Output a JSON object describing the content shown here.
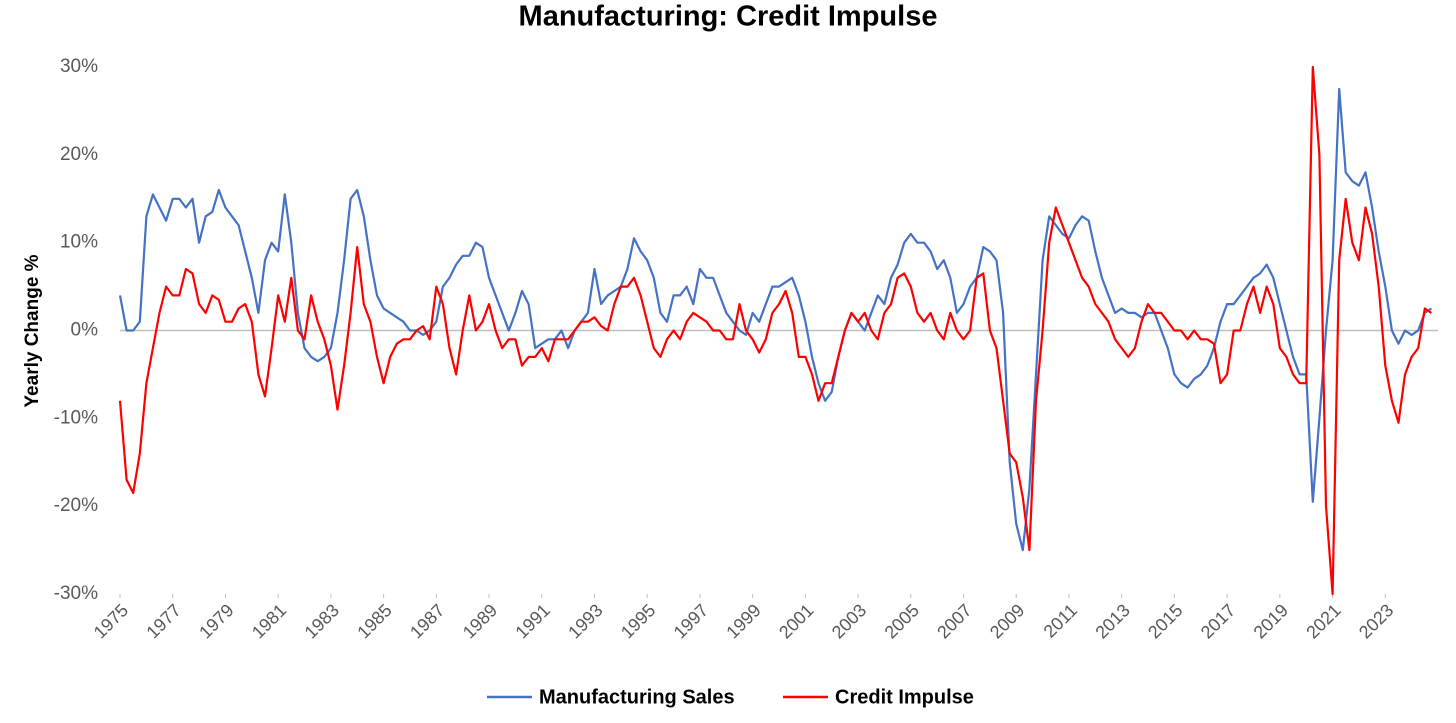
{
  "chart_data": {
    "type": "line",
    "title": "Manufacturing: Credit Impulse",
    "y_label": "Yearly Change %",
    "x": [
      1975,
      1975.25,
      1975.5,
      1975.75,
      1976,
      1976.25,
      1976.5,
      1976.75,
      1977,
      1977.25,
      1977.5,
      1977.75,
      1978,
      1978.25,
      1978.5,
      1978.75,
      1979,
      1979.25,
      1979.5,
      1979.75,
      1980,
      1980.25,
      1980.5,
      1980.75,
      1981,
      1981.25,
      1981.5,
      1981.75,
      1982,
      1982.25,
      1982.5,
      1982.75,
      1983,
      1983.25,
      1983.5,
      1983.75,
      1984,
      1984.25,
      1984.5,
      1984.75,
      1985,
      1985.25,
      1985.5,
      1985.75,
      1986,
      1986.25,
      1986.5,
      1986.75,
      1987,
      1987.25,
      1987.5,
      1987.75,
      1988,
      1988.25,
      1988.5,
      1988.75,
      1989,
      1989.25,
      1989.5,
      1989.75,
      1990,
      1990.25,
      1990.5,
      1990.75,
      1991,
      1991.25,
      1991.5,
      1991.75,
      1992,
      1992.25,
      1992.5,
      1992.75,
      1993,
      1993.25,
      1993.5,
      1993.75,
      1994,
      1994.25,
      1994.5,
      1994.75,
      1995,
      1995.25,
      1995.5,
      1995.75,
      1996,
      1996.25,
      1996.5,
      1996.75,
      1997,
      1997.25,
      1997.5,
      1997.75,
      1998,
      1998.25,
      1998.5,
      1998.75,
      1999,
      1999.25,
      1999.5,
      1999.75,
      2000,
      2000.25,
      2000.5,
      2000.75,
      2001,
      2001.25,
      2001.5,
      2001.75,
      2002,
      2002.25,
      2002.5,
      2002.75,
      2003,
      2003.25,
      2003.5,
      2003.75,
      2004,
      2004.25,
      2004.5,
      2004.75,
      2005,
      2005.25,
      2005.5,
      2005.75,
      2006,
      2006.25,
      2006.5,
      2006.75,
      2007,
      2007.25,
      2007.5,
      2007.75,
      2008,
      2008.25,
      2008.5,
      2008.75,
      2009,
      2009.25,
      2009.5,
      2009.75,
      2010,
      2010.25,
      2010.5,
      2010.75,
      2011,
      2011.25,
      2011.5,
      2011.75,
      2012,
      2012.25,
      2012.5,
      2012.75,
      2013,
      2013.25,
      2013.5,
      2013.75,
      2014,
      2014.25,
      2014.5,
      2014.75,
      2015,
      2015.25,
      2015.5,
      2015.75,
      2016,
      2016.25,
      2016.5,
      2016.75,
      2017,
      2017.25,
      2017.5,
      2017.75,
      2018,
      2018.25,
      2018.5,
      2018.75,
      2019,
      2019.25,
      2019.5,
      2019.75,
      2020,
      2020.25,
      2020.5,
      2020.75,
      2021,
      2021.25,
      2021.5,
      2021.75,
      2022,
      2022.25,
      2022.5,
      2022.75,
      2023,
      2023.25,
      2023.5,
      2023.75,
      2024,
      2024.25,
      2024.5,
      2024.75
    ],
    "series": [
      {
        "name": "Manufacturing Sales",
        "color": "#4472c4",
        "values": [
          4,
          0,
          0,
          1,
          13,
          15.5,
          14,
          12.5,
          15,
          15,
          14,
          15,
          10,
          13,
          13.5,
          16,
          14,
          13,
          12,
          9,
          6,
          2,
          8,
          10,
          9,
          15.5,
          10,
          2,
          -2,
          -3,
          -3.5,
          -3,
          -2,
          2,
          8,
          15,
          16,
          13,
          8,
          4,
          2.5,
          2,
          1.5,
          1,
          0,
          0,
          -0.5,
          0,
          1,
          5,
          6,
          7.5,
          8.5,
          8.5,
          10,
          9.5,
          6,
          4,
          2,
          0,
          2,
          4.5,
          3,
          -2,
          -1.5,
          -1,
          -1,
          0,
          -2,
          0,
          1,
          2,
          7,
          3,
          4,
          4.5,
          5,
          7,
          10.5,
          9,
          8,
          6,
          2,
          1,
          4,
          4,
          5,
          3,
          7,
          6,
          6,
          4,
          2,
          1,
          0,
          -0.5,
          2,
          1,
          3,
          5,
          5,
          5.5,
          6,
          4,
          1,
          -3,
          -6,
          -8,
          -7,
          -3,
          0,
          2,
          1,
          0,
          2,
          4,
          3,
          6,
          7.5,
          10,
          11,
          10,
          10,
          9,
          7,
          8,
          6,
          2,
          3,
          5,
          6,
          9.5,
          9,
          8,
          2,
          -15,
          -22,
          -25,
          -18,
          -5,
          8,
          13,
          12,
          11,
          10.5,
          12,
          13,
          12.5,
          9,
          6,
          4,
          2,
          2.5,
          2,
          2,
          1.5,
          2,
          2,
          0,
          -2,
          -5,
          -6,
          -6.5,
          -5.5,
          -5,
          -4,
          -2,
          1,
          3,
          3,
          4,
          5,
          6,
          6.5,
          7.5,
          6,
          3,
          0,
          -3,
          -5,
          -5,
          -19.5,
          -10,
          0,
          8,
          27.5,
          18,
          17,
          16.5,
          18,
          14,
          9,
          5,
          0,
          -1.5,
          0,
          -0.5,
          0,
          2,
          2.5
        ]
      },
      {
        "name": "Credit Impulse",
        "color": "#ff0000",
        "values": [
          -8,
          -17,
          -18.5,
          -14,
          -6,
          -2,
          2,
          5,
          4,
          4,
          7,
          6.5,
          3,
          2,
          4,
          3.5,
          1,
          1,
          2.5,
          3,
          1,
          -5,
          -7.5,
          -2,
          4,
          1,
          6,
          0,
          -1,
          4,
          1,
          -1,
          -4,
          -9,
          -4,
          2,
          9.5,
          3,
          1,
          -3,
          -6,
          -3,
          -1.5,
          -1,
          -1,
          0,
          0.5,
          -1,
          5,
          3,
          -2,
          -5,
          0,
          4,
          0,
          1,
          3,
          0,
          -2,
          -1,
          -1,
          -4,
          -3,
          -3,
          -2,
          -3.5,
          -1,
          -1,
          -1,
          0,
          1,
          1,
          1.5,
          0.5,
          0,
          3,
          5,
          5,
          6,
          4,
          1,
          -2,
          -3,
          -1,
          0,
          -1,
          1,
          2,
          1.5,
          1,
          0,
          0,
          -1,
          -1,
          3,
          0,
          -1,
          -2.5,
          -1,
          2,
          3,
          4.5,
          2,
          -3,
          -3,
          -5,
          -8,
          -6,
          -6,
          -3,
          0,
          2,
          1,
          2,
          0,
          -1,
          2,
          3,
          6,
          6.5,
          5,
          2,
          1,
          2,
          0,
          -1,
          2,
          0,
          -1,
          0,
          6,
          6.5,
          0,
          -2,
          -8,
          -14,
          -15,
          -19,
          -25,
          -8,
          0,
          10,
          14,
          12,
          10,
          8,
          6,
          5,
          3,
          2,
          1,
          -1,
          -2,
          -3,
          -2,
          1,
          3,
          2,
          2,
          1,
          0,
          0,
          -1,
          0,
          -1,
          -1,
          -1.5,
          -6,
          -5,
          0,
          0,
          3,
          5,
          2,
          5,
          3,
          -2,
          -3,
          -5,
          -6,
          -6,
          30,
          20,
          -20,
          -30,
          8,
          15,
          10,
          8,
          14,
          11,
          5,
          -4,
          -8,
          -10.5,
          -5,
          -3,
          -2,
          2.5,
          2
        ]
      }
    ],
    "xlim": [
      1975,
      2025
    ],
    "xticks": [
      1975,
      1977,
      1979,
      1981,
      1983,
      1985,
      1987,
      1989,
      1991,
      1993,
      1995,
      1997,
      1999,
      2001,
      2003,
      2005,
      2007,
      2009,
      2011,
      2013,
      2015,
      2017,
      2019,
      2021,
      2023
    ],
    "ylim": [
      -30,
      30
    ],
    "yticks": [
      {
        "value": -30,
        "label": "-30%"
      },
      {
        "value": -20,
        "label": "-20%"
      },
      {
        "value": -10,
        "label": "-10%"
      },
      {
        "value": 0,
        "label": "0%"
      },
      {
        "value": 10,
        "label": "10%"
      },
      {
        "value": 20,
        "label": "20%"
      },
      {
        "value": 30,
        "label": "30%"
      }
    ],
    "legend": "bottom"
  }
}
